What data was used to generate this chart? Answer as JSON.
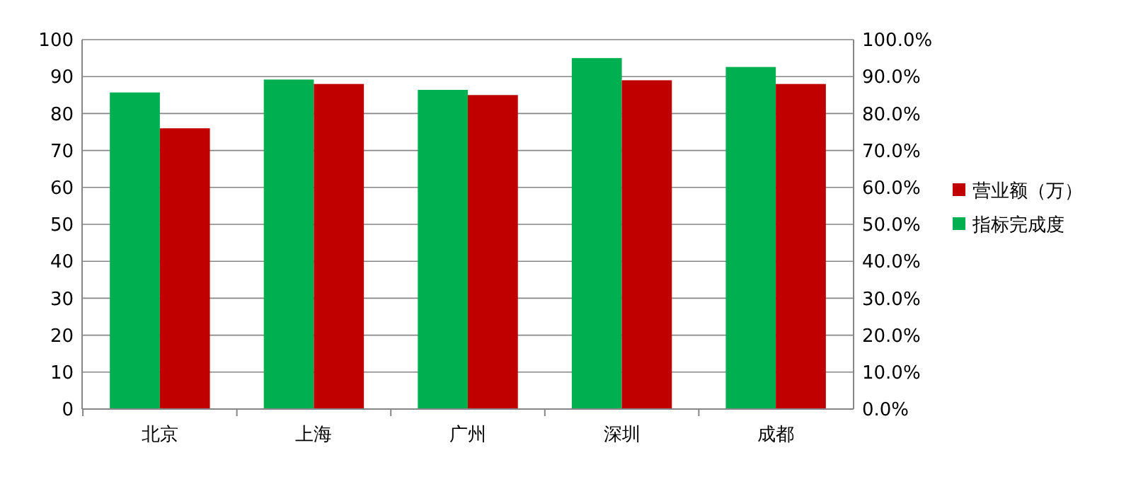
{
  "chart_data": {
    "type": "bar",
    "categories": [
      "北京",
      "上海",
      "广州",
      "深圳",
      "成都"
    ],
    "series": [
      {
        "name": "指标完成度",
        "color": "#00b050",
        "values": [
          0.857,
          0.892,
          0.864,
          0.95,
          0.926
        ],
        "axis": "y2"
      },
      {
        "name": "营业额（万）",
        "color": "#c00000",
        "values": [
          76,
          88,
          85,
          89,
          88
        ]
      }
    ],
    "ylim": [
      0,
      100
    ],
    "yticks": [
      0,
      10,
      20,
      30,
      40,
      50,
      60,
      70,
      80,
      90,
      100
    ],
    "y2lim": [
      0,
      1
    ],
    "y2ticks": [
      {
        "value": 0,
        "label": "0.0%"
      },
      {
        "value": 0.1,
        "label": "10.0%"
      },
      {
        "value": 0.2,
        "label": "20.0%"
      },
      {
        "value": 0.3,
        "label": "30.0%"
      },
      {
        "value": 0.4,
        "label": "40.0%"
      },
      {
        "value": 0.5,
        "label": "50.0%"
      },
      {
        "value": 0.6,
        "label": "60.0%"
      },
      {
        "value": 0.7,
        "label": "70.0%"
      },
      {
        "value": 0.8,
        "label": "80.0%"
      },
      {
        "value": 0.9,
        "label": "90.0%"
      },
      {
        "value": 1,
        "label": "100.0%"
      }
    ],
    "grid": "y",
    "legend": "right"
  }
}
